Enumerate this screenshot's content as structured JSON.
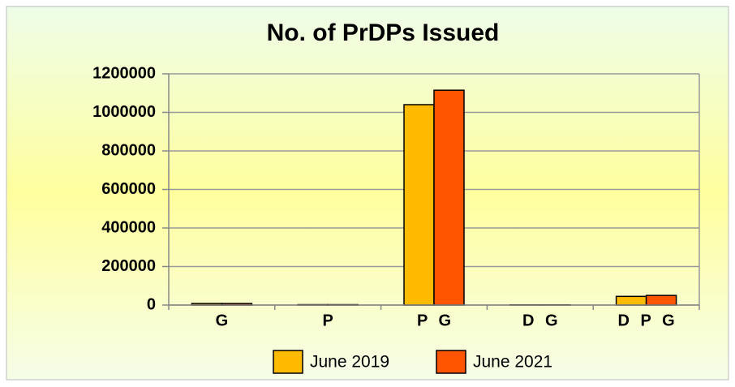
{
  "chart_data": {
    "type": "bar",
    "title": "No. of PrDPs Issued",
    "categories": [
      "G",
      "P",
      "P G",
      "D G",
      "D P G"
    ],
    "series": [
      {
        "name": "June 2019",
        "color": "#ffbb00",
        "values": [
          8000,
          2000,
          1040000,
          1000,
          45000
        ]
      },
      {
        "name": "June 2021",
        "color": "#ff5500",
        "values": [
          8000,
          2000,
          1115000,
          1000,
          50000
        ]
      }
    ],
    "ylim": [
      0,
      1200000
    ],
    "yticks": [
      0,
      200000,
      400000,
      600000,
      800000,
      1000000,
      1200000
    ],
    "grid": true
  }
}
